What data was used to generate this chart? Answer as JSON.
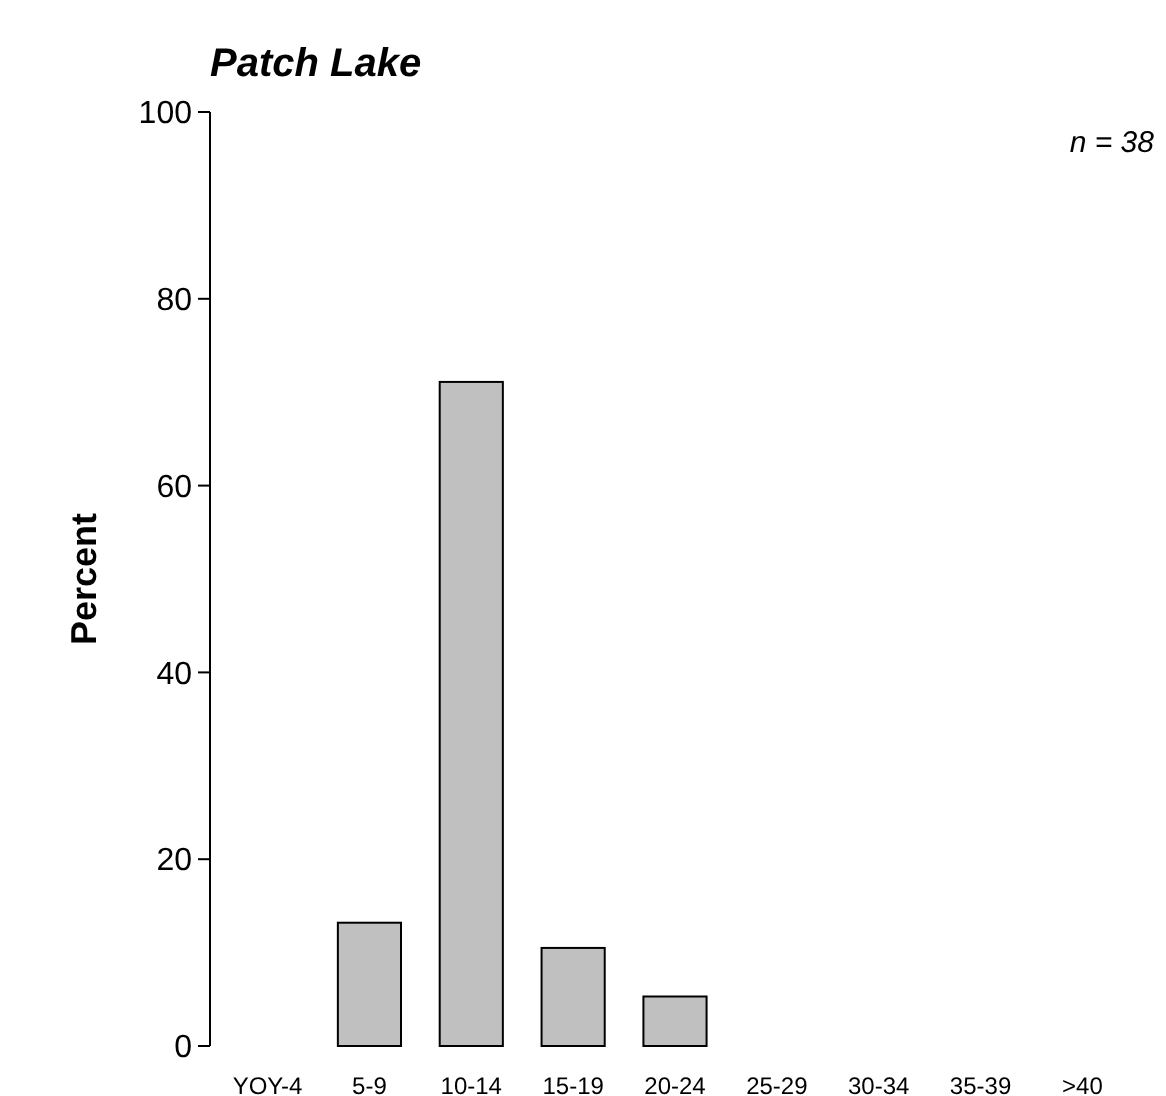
{
  "chart_data": {
    "type": "bar",
    "title": "Patch Lake",
    "ylabel": "Percent",
    "categories": [
      "YOY-4",
      "5-9",
      "10-14",
      "15-19",
      "20-24",
      "25-29",
      "30-34",
      "35-39",
      ">40"
    ],
    "values": [
      0,
      13.2,
      71.1,
      10.5,
      5.3,
      0,
      0,
      0,
      0
    ],
    "color": "#c0c0c0",
    "ylim": [
      0,
      100
    ],
    "yticks": [
      0,
      20,
      40,
      60,
      80,
      100
    ],
    "grid": false,
    "annotations": [
      "n = 38"
    ]
  }
}
